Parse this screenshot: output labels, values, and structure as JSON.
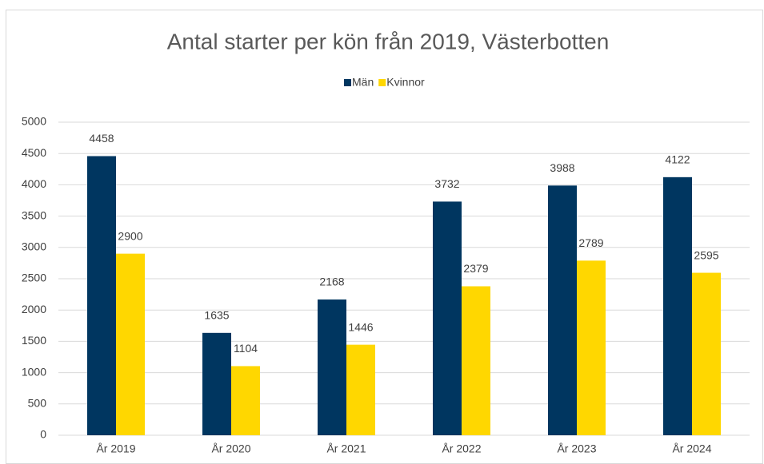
{
  "chart_data": {
    "type": "bar",
    "title": "Antal starter per kön från 2019, Västerbotten",
    "categories": [
      "År 2019",
      "År 2020",
      "År 2021",
      "År 2022",
      "År 2023",
      "År 2024"
    ],
    "series": [
      {
        "name": "Män",
        "color": "#003660",
        "values": [
          4458,
          1635,
          2168,
          3732,
          3988,
          4122
        ]
      },
      {
        "name": "Kvinnor",
        "color": "#ffd700",
        "values": [
          2900,
          1104,
          1446,
          2379,
          2789,
          2595
        ]
      }
    ],
    "ylim": [
      0,
      5000
    ],
    "yticks": [
      0,
      500,
      1000,
      1500,
      2000,
      2500,
      3000,
      3500,
      4000,
      4500,
      5000
    ],
    "grid": true,
    "legend": "top"
  }
}
